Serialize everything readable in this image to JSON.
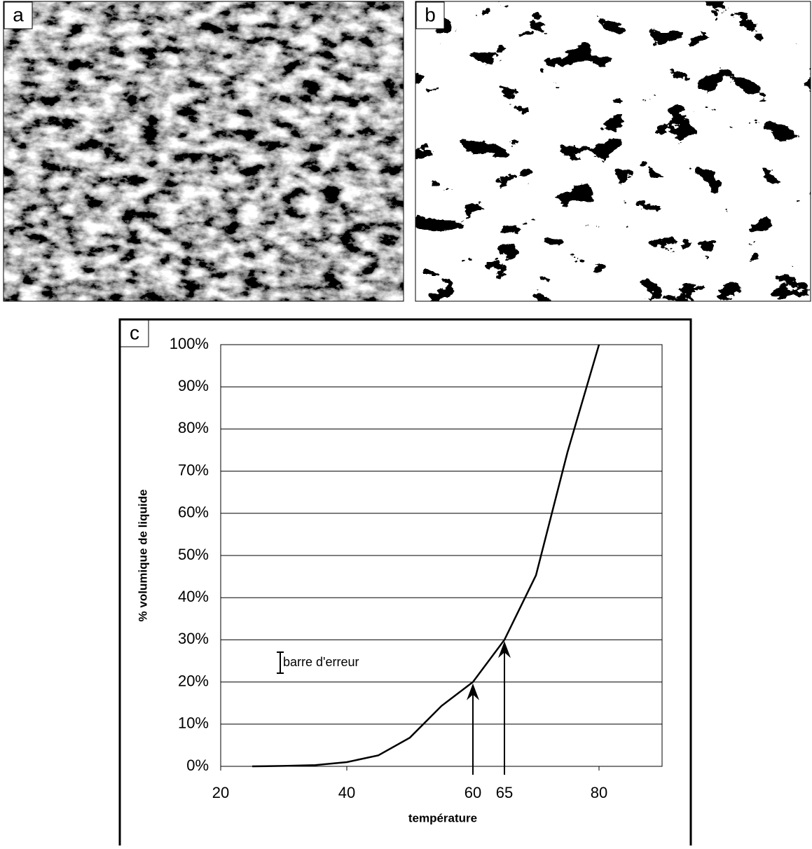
{
  "panels": {
    "a": "a",
    "b": "b"
  },
  "chart_data": {
    "type": "line",
    "panel_label": "c",
    "x_label": "température",
    "y_label": "% volumique de liquide",
    "x": [
      25,
      30,
      35,
      40,
      45,
      50,
      55,
      60,
      65,
      70,
      75,
      80
    ],
    "series": [
      {
        "name": "liquide",
        "color": "#000000",
        "values": [
          0,
          0.1,
          0.3,
          1.0,
          2.6,
          6.8,
          14.3,
          20,
          30,
          45.3,
          74.5,
          100
        ]
      }
    ],
    "xlim": [
      20,
      90
    ],
    "xticks": [
      20,
      40,
      60,
      65,
      80
    ],
    "ylim": [
      0,
      100
    ],
    "yticks": [
      {
        "value": 0,
        "label": "0%"
      },
      {
        "value": 10,
        "label": "10%"
      },
      {
        "value": 20,
        "label": "20%"
      },
      {
        "value": 30,
        "label": "30%"
      },
      {
        "value": 40,
        "label": "40%"
      },
      {
        "value": 50,
        "label": "50%"
      },
      {
        "value": 60,
        "label": "60%"
      },
      {
        "value": 70,
        "label": "70%"
      },
      {
        "value": 80,
        "label": "80%"
      },
      {
        "value": 90,
        "label": "90%"
      },
      {
        "value": 100,
        "label": "100%"
      }
    ],
    "grid": true,
    "arrows_x": [
      60,
      65
    ],
    "error_bar": {
      "label": "barre d'erreur",
      "size": 5
    }
  }
}
